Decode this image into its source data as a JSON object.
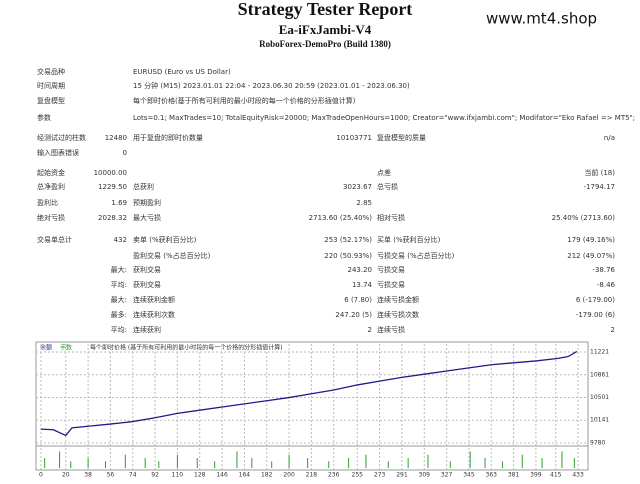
{
  "header": {
    "title": "Strategy Tester Report",
    "subtitle": "Ea-iFxJambi-V4",
    "server": "RoboForex-DemoPro (Build 1380)",
    "watermark": "www.mt4.shop"
  },
  "info": [
    {
      "label": "交易品种",
      "value": "EURUSD (Euro vs US Dollar)"
    },
    {
      "label": "时间周期",
      "value": "15 分钟 (M15) 2023.01.01 22:04 - 2023.06.30 20:59 (2023.01.01 - 2023.06.30)"
    },
    {
      "label": "复盘模型",
      "value": "每个即时价格(基于所有可利用的最小时段的每一个价格的分形插值计算)"
    },
    {
      "label": "参数",
      "value": "Lots=0.1; MaxTrades=10; TotalEquityRisk=20000; MaxTradeOpenHours=1000; Creator=\"www.ifxjambi.com\"; Modifator=\"Eko Rafael => MT5\";"
    }
  ],
  "stats": [
    [
      {
        "l1": "经测试过的柱数",
        "v1": "12480",
        "l2": "用于复盘的即时价数量",
        "v2": "10103771",
        "l3": "复盘模型的质量",
        "v3": "n/a"
      },
      {
        "l1": "输入图表错误",
        "v1": "0"
      }
    ],
    [
      {
        "l1": "起始资金",
        "v1": "10000.00",
        "l3": "点差",
        "v3": "当前 (18)"
      },
      {
        "l1": "总净盈利",
        "v1": "1229.50",
        "l2": "总获利",
        "v2": "3023.67",
        "l3": "总亏损",
        "v3": "-1794.17"
      },
      {
        "l1": "盈利比",
        "v1": "1.69",
        "l2": "预期盈利",
        "v2": "2.85"
      },
      {
        "l1": "绝对亏损",
        "v1": "2028.32",
        "l2": "最大亏损",
        "v2": "2713.60 (25.40%)",
        "l3": "相对亏损",
        "v3": "25.40% (2713.60)"
      }
    ],
    [
      {
        "l1": "交易单总计",
        "v1": "432",
        "l2": "卖单 (%获利百分比)",
        "v2": "253 (52.17%)",
        "l3": "买单 (%获利百分比)",
        "v3": "179 (49.16%)"
      },
      {
        "l2": "盈利交易 (%占总百分比)",
        "v2": "220 (50.93%)",
        "l3": "亏损交易 (%占总百分比)",
        "v3": "212 (49.07%)"
      },
      {
        "prefix": "最大:",
        "l2": "获利交易",
        "v2": "243.20",
        "l3": "亏损交易",
        "v3": "-38.76"
      },
      {
        "prefix": "平均:",
        "l2": "获利交易",
        "v2": "13.74",
        "l3": "亏损交易",
        "v3": "-8.46"
      },
      {
        "prefix": "最大:",
        "l2": "连续获利金额",
        "v2": "6 (7.80)",
        "l3": "连续亏损金额",
        "v3": "6 (-179.00)"
      },
      {
        "prefix": "最多:",
        "l2": "连续获利次数",
        "v2": "247.20 (5)",
        "l3": "连续亏损次数",
        "v3": "-179.00 (6)"
      },
      {
        "prefix": "平均:",
        "l2": "连续获利",
        "v2": "2",
        "l3": "连续亏损",
        "v3": "2"
      }
    ]
  ],
  "chart_data": {
    "type": "line",
    "x": [
      0,
      10,
      20,
      25,
      40,
      56,
      74,
      92,
      110,
      128,
      146,
      164,
      182,
      200,
      218,
      236,
      255,
      273,
      291,
      309,
      327,
      345,
      363,
      381,
      399,
      417,
      425,
      432
    ],
    "series": [
      {
        "name": "余额",
        "color": "#1c1c8c",
        "values": [
          10000,
          9990,
          9900,
          10020,
          10050,
          10080,
          10120,
          10180,
          10250,
          10300,
          10350,
          10400,
          10450,
          10500,
          10560,
          10620,
          10700,
          10760,
          10820,
          10870,
          10920,
          10970,
          11020,
          11050,
          11080,
          11120,
          11150,
          11229.5
        ]
      }
    ],
    "xlim": [
      -4,
      441
    ],
    "ylim": [
      9733,
      11348
    ],
    "xticks": [
      0,
      20,
      38,
      56,
      74,
      92,
      110,
      128,
      146,
      164,
      182,
      200,
      218,
      236,
      255,
      273,
      291,
      309,
      327,
      345,
      363,
      381,
      399,
      415,
      433
    ],
    "yticks": [
      9780,
      10141,
      10501,
      10861,
      11221
    ],
    "grid": true,
    "model_label": "每个即时价格 (基于所有可利用的最小时段的每一个价格的分形插值计算)",
    "lots": {
      "name": "手数",
      "color": "#2e9e2e",
      "ylim": [
        0,
        0.6
      ],
      "x": [
        3,
        15,
        24,
        38,
        52,
        68,
        84,
        95,
        110,
        126,
        140,
        158,
        170,
        186,
        200,
        215,
        232,
        248,
        262,
        280,
        296,
        312,
        330,
        346,
        358,
        372,
        388,
        404,
        420,
        430
      ],
      "values": [
        0.3,
        0.5,
        0.2,
        0.3,
        0.2,
        0.4,
        0.3,
        0.2,
        0.4,
        0.3,
        0.2,
        0.5,
        0.3,
        0.2,
        0.4,
        0.3,
        0.2,
        0.3,
        0.4,
        0.2,
        0.3,
        0.4,
        0.2,
        0.5,
        0.3,
        0.2,
        0.4,
        0.3,
        0.5,
        0.3
      ]
    }
  }
}
